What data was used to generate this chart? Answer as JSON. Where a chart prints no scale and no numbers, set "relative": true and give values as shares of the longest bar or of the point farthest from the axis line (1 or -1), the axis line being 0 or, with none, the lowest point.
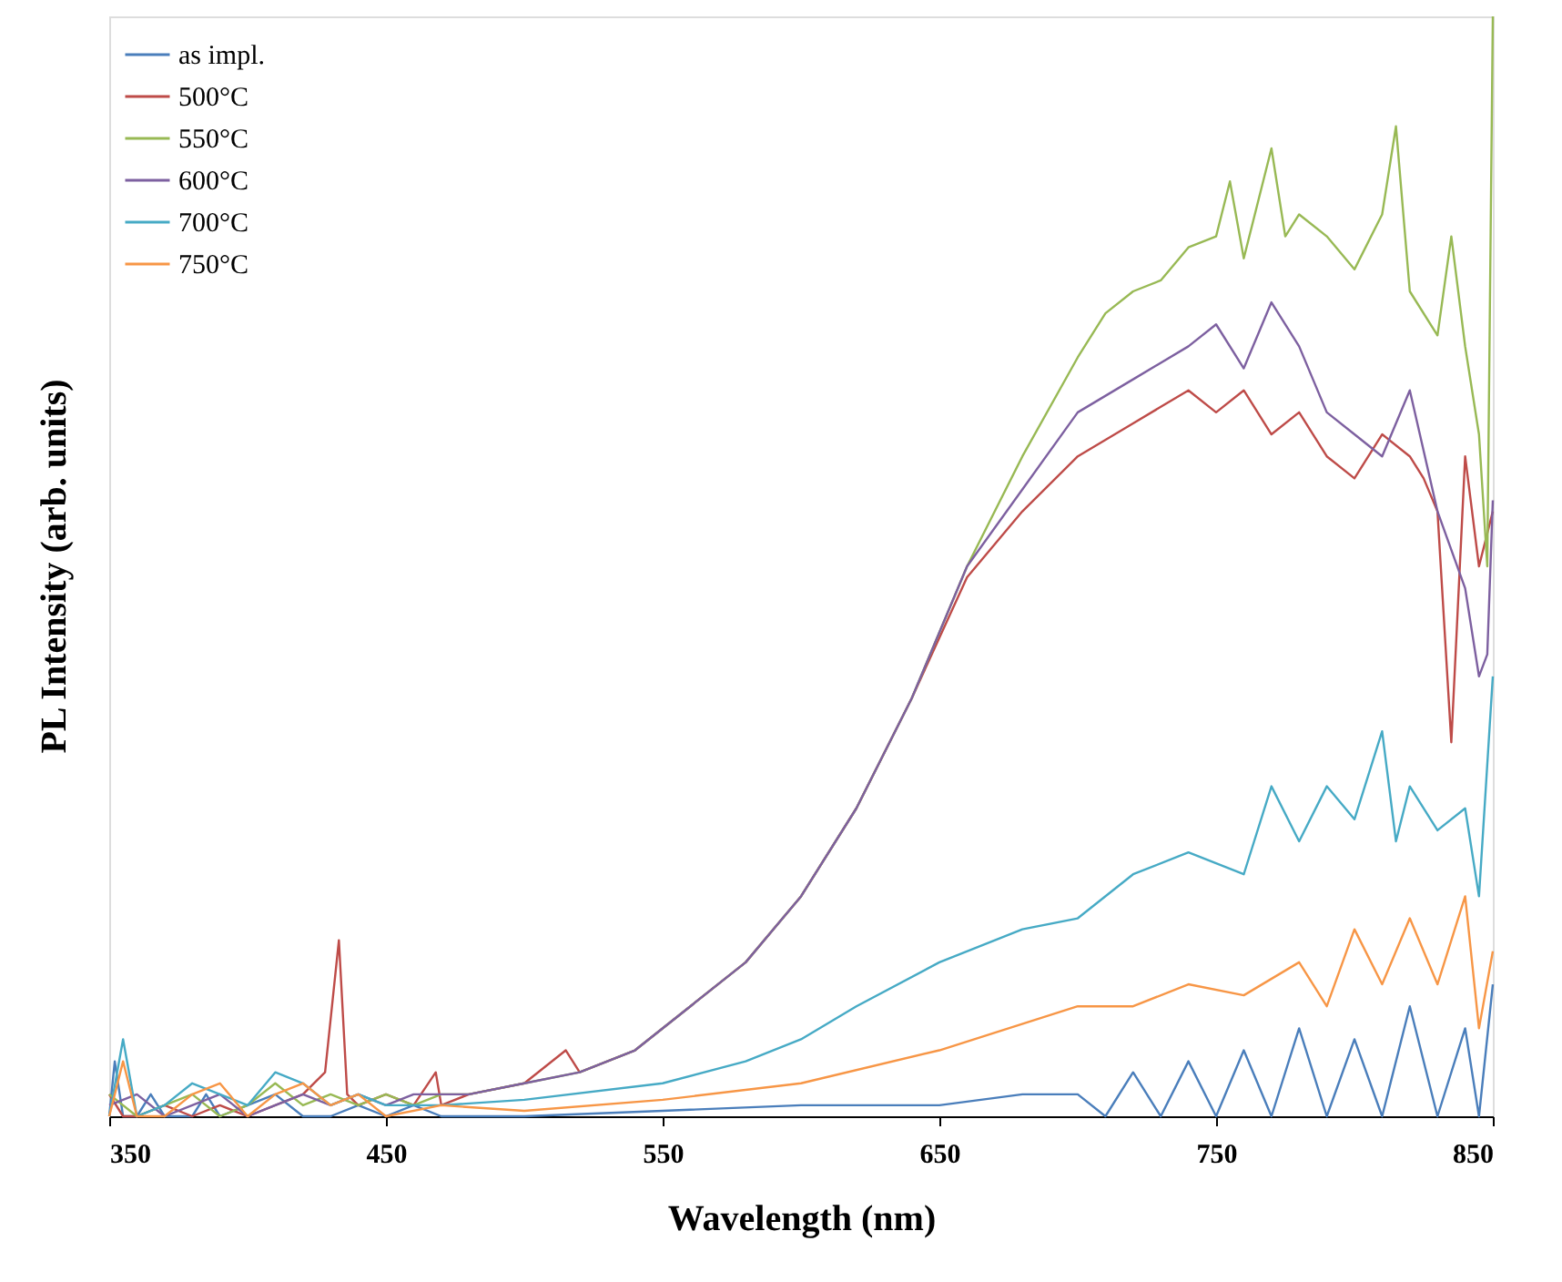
{
  "chart_data": {
    "type": "line",
    "relative": true,
    "xlabel": "Wavelength (nm)",
    "ylabel": "PL Intensity (arb. units)",
    "xlim": [
      350,
      850
    ],
    "xticks": [
      350,
      450,
      550,
      650,
      750,
      850
    ],
    "legend": "top left",
    "grid": false,
    "marker": "none",
    "line_style": "solid",
    "series": [
      {
        "name": "as impl.",
        "color": "#4a7ebb",
        "x": [
          350,
          352,
          355,
          360,
          365,
          370,
          380,
          385,
          390,
          400,
          410,
          420,
          430,
          440,
          450,
          460,
          470,
          500,
          550,
          600,
          650,
          680,
          700,
          710,
          720,
          730,
          740,
          750,
          760,
          770,
          780,
          790,
          800,
          810,
          820,
          830,
          840,
          845,
          850
        ],
        "values": [
          0.0,
          0.05,
          0.0,
          0.0,
          0.02,
          0.0,
          0.0,
          0.02,
          0.0,
          0.01,
          0.02,
          0.0,
          0.0,
          0.01,
          0.0,
          0.01,
          0.0,
          0.0,
          0.005,
          0.01,
          0.01,
          0.02,
          0.02,
          0.0,
          0.04,
          0.0,
          0.05,
          0.0,
          0.06,
          0.0,
          0.08,
          0.0,
          0.07,
          0.0,
          0.1,
          0.0,
          0.08,
          0.0,
          0.12
        ]
      },
      {
        "name": "500°C",
        "color": "#be4b48",
        "x": [
          350,
          355,
          360,
          370,
          380,
          390,
          400,
          410,
          420,
          428,
          433,
          436,
          440,
          450,
          460,
          468,
          470,
          480,
          500,
          515,
          520,
          540,
          560,
          580,
          600,
          620,
          640,
          660,
          680,
          700,
          720,
          740,
          750,
          760,
          770,
          780,
          790,
          800,
          810,
          820,
          825,
          830,
          835,
          840,
          845,
          850
        ],
        "values": [
          0.02,
          0.0,
          0.0,
          0.01,
          0.0,
          0.01,
          0.0,
          0.01,
          0.02,
          0.04,
          0.16,
          0.02,
          0.01,
          0.02,
          0.01,
          0.04,
          0.01,
          0.02,
          0.03,
          0.06,
          0.04,
          0.06,
          0.1,
          0.14,
          0.2,
          0.28,
          0.38,
          0.49,
          0.55,
          0.6,
          0.63,
          0.66,
          0.64,
          0.66,
          0.62,
          0.64,
          0.6,
          0.58,
          0.62,
          0.6,
          0.58,
          0.55,
          0.34,
          0.6,
          0.5,
          0.55
        ]
      },
      {
        "name": "550°C",
        "color": "#98b954",
        "x": [
          350,
          360,
          370,
          380,
          390,
          400,
          410,
          420,
          430,
          440,
          450,
          460,
          470,
          480,
          500,
          520,
          540,
          560,
          580,
          600,
          620,
          640,
          660,
          680,
          700,
          710,
          720,
          730,
          740,
          750,
          755,
          760,
          770,
          775,
          780,
          790,
          800,
          810,
          815,
          820,
          830,
          835,
          840,
          845,
          848,
          850
        ],
        "values": [
          0.02,
          0.0,
          0.01,
          0.02,
          0.0,
          0.01,
          0.03,
          0.01,
          0.02,
          0.01,
          0.02,
          0.01,
          0.02,
          0.02,
          0.03,
          0.04,
          0.06,
          0.1,
          0.14,
          0.2,
          0.28,
          0.38,
          0.5,
          0.6,
          0.69,
          0.73,
          0.75,
          0.76,
          0.79,
          0.8,
          0.85,
          0.78,
          0.88,
          0.8,
          0.82,
          0.8,
          0.77,
          0.82,
          0.9,
          0.75,
          0.71,
          0.8,
          0.7,
          0.62,
          0.5,
          1.0
        ]
      },
      {
        "name": "600°C",
        "color": "#7d60a0",
        "x": [
          350,
          360,
          370,
          380,
          390,
          400,
          410,
          420,
          430,
          440,
          450,
          460,
          470,
          480,
          500,
          520,
          540,
          560,
          580,
          600,
          620,
          640,
          660,
          680,
          700,
          720,
          740,
          750,
          760,
          770,
          780,
          790,
          800,
          810,
          820,
          830,
          840,
          845,
          848,
          850
        ],
        "values": [
          0.01,
          0.02,
          0.0,
          0.01,
          0.02,
          0.0,
          0.01,
          0.02,
          0.01,
          0.02,
          0.01,
          0.02,
          0.02,
          0.02,
          0.03,
          0.04,
          0.06,
          0.1,
          0.14,
          0.2,
          0.28,
          0.38,
          0.5,
          0.57,
          0.64,
          0.67,
          0.7,
          0.72,
          0.68,
          0.74,
          0.7,
          0.64,
          0.62,
          0.6,
          0.66,
          0.55,
          0.48,
          0.4,
          0.42,
          0.56
        ]
      },
      {
        "name": "700°C",
        "color": "#46aac5",
        "x": [
          350,
          355,
          360,
          370,
          380,
          390,
          400,
          410,
          420,
          430,
          440,
          450,
          470,
          500,
          550,
          580,
          600,
          620,
          650,
          680,
          700,
          720,
          740,
          760,
          770,
          780,
          790,
          800,
          810,
          815,
          820,
          830,
          840,
          845,
          850
        ],
        "values": [
          0.0,
          0.07,
          0.0,
          0.01,
          0.03,
          0.02,
          0.01,
          0.04,
          0.03,
          0.01,
          0.02,
          0.01,
          0.01,
          0.015,
          0.03,
          0.05,
          0.07,
          0.1,
          0.14,
          0.17,
          0.18,
          0.22,
          0.24,
          0.22,
          0.3,
          0.25,
          0.3,
          0.27,
          0.35,
          0.25,
          0.3,
          0.26,
          0.28,
          0.2,
          0.4
        ]
      },
      {
        "name": "750°C",
        "color": "#f79646",
        "x": [
          350,
          355,
          360,
          370,
          380,
          390,
          400,
          410,
          420,
          430,
          440,
          450,
          470,
          500,
          550,
          600,
          650,
          700,
          720,
          740,
          760,
          780,
          790,
          800,
          810,
          820,
          830,
          840,
          845,
          850
        ],
        "values": [
          0.0,
          0.05,
          0.0,
          0.0,
          0.02,
          0.03,
          0.0,
          0.02,
          0.03,
          0.01,
          0.02,
          0.0,
          0.01,
          0.005,
          0.015,
          0.03,
          0.06,
          0.1,
          0.1,
          0.12,
          0.11,
          0.14,
          0.1,
          0.17,
          0.12,
          0.18,
          0.12,
          0.2,
          0.08,
          0.15
        ]
      }
    ]
  }
}
